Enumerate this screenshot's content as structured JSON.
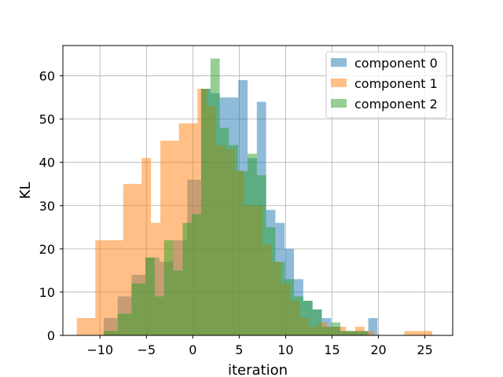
{
  "chart_data": {
    "type": "bar",
    "title": "",
    "xlabel": "iteration",
    "ylabel": "KL",
    "xlim": [
      -14,
      28
    ],
    "ylim": [
      0,
      67
    ],
    "xticks": [
      -10,
      -5,
      0,
      5,
      10,
      15,
      20,
      25
    ],
    "yticks": [
      0,
      10,
      20,
      30,
      40,
      50,
      60
    ],
    "xtick_labels": [
      "−10",
      "−5",
      "0",
      "5",
      "10",
      "15",
      "20",
      "25"
    ],
    "ytick_labels": [
      "0",
      "10",
      "20",
      "30",
      "40",
      "50",
      "60"
    ],
    "grid": true,
    "legend_position": "top-right",
    "histogram": true,
    "series": [
      {
        "name": "component 0",
        "color": "#1f77b4",
        "bins": [
          [
            -9.6,
            -8.1,
            4
          ],
          [
            -8.1,
            -6.6,
            9
          ],
          [
            -6.6,
            -5.1,
            14
          ],
          [
            -5.1,
            -3.6,
            18
          ],
          [
            -3.6,
            -2.1,
            17
          ],
          [
            -2.1,
            -0.6,
            22
          ],
          [
            -0.6,
            0.9,
            36
          ],
          [
            0.9,
            1.9,
            57
          ],
          [
            1.9,
            2.9,
            56
          ],
          [
            2.9,
            3.9,
            55
          ],
          [
            3.9,
            4.9,
            55
          ],
          [
            4.9,
            5.9,
            59
          ],
          [
            5.9,
            6.9,
            41
          ],
          [
            6.9,
            7.9,
            54
          ],
          [
            7.9,
            8.9,
            29
          ],
          [
            8.9,
            9.9,
            26
          ],
          [
            9.9,
            10.9,
            20
          ],
          [
            10.9,
            11.9,
            13
          ],
          [
            11.9,
            12.9,
            8
          ],
          [
            12.9,
            13.9,
            6
          ],
          [
            13.9,
            14.9,
            4
          ],
          [
            14.9,
            15.9,
            2
          ],
          [
            15.9,
            16.9,
            1
          ],
          [
            16.9,
            17.9,
            1
          ],
          [
            17.9,
            18.9,
            1
          ],
          [
            18.9,
            19.9,
            4
          ]
        ]
      },
      {
        "name": "component 1",
        "color": "#ff7f0e",
        "bins": [
          [
            -12.5,
            -10.5,
            4
          ],
          [
            -10.5,
            -8.5,
            22
          ],
          [
            -8.5,
            -7.5,
            22
          ],
          [
            -7.5,
            -6.5,
            35
          ],
          [
            -6.5,
            -5.5,
            35
          ],
          [
            -5.5,
            -4.5,
            41
          ],
          [
            -4.5,
            -3.5,
            26
          ],
          [
            -3.5,
            -2.5,
            45
          ],
          [
            -2.5,
            -1.5,
            45
          ],
          [
            -1.5,
            -0.5,
            49
          ],
          [
            -0.5,
            0.5,
            49
          ],
          [
            0.5,
            1.5,
            57
          ],
          [
            1.5,
            2.5,
            53
          ],
          [
            2.5,
            3.5,
            44
          ],
          [
            3.5,
            4.5,
            43
          ],
          [
            4.5,
            5.5,
            38
          ],
          [
            5.5,
            6.5,
            30
          ],
          [
            6.5,
            7.5,
            30
          ],
          [
            7.5,
            8.5,
            21
          ],
          [
            8.5,
            9.5,
            17
          ],
          [
            9.5,
            10.5,
            12
          ],
          [
            10.5,
            11.5,
            8
          ],
          [
            11.5,
            12.5,
            4
          ],
          [
            12.5,
            13.5,
            2
          ],
          [
            13.5,
            14.5,
            3
          ],
          [
            14.5,
            15.5,
            2
          ],
          [
            15.5,
            16.5,
            2
          ],
          [
            16.5,
            17.5,
            1
          ],
          [
            17.5,
            18.5,
            2
          ],
          [
            18.5,
            19.5,
            1
          ],
          [
            22.8,
            25.8,
            1
          ]
        ]
      },
      {
        "name": "component 2",
        "color": "#2ca02c",
        "bins": [
          [
            -9.6,
            -8.1,
            1
          ],
          [
            -8.1,
            -6.6,
            5
          ],
          [
            -6.6,
            -5.1,
            12
          ],
          [
            -5.1,
            -4.1,
            18
          ],
          [
            -4.1,
            -3.1,
            9
          ],
          [
            -3.1,
            -2.1,
            22
          ],
          [
            -2.1,
            -1.1,
            15
          ],
          [
            -1.1,
            -0.1,
            26
          ],
          [
            -0.1,
            0.9,
            28
          ],
          [
            0.9,
            1.9,
            57
          ],
          [
            1.9,
            2.9,
            64
          ],
          [
            2.9,
            3.9,
            48
          ],
          [
            3.9,
            4.9,
            44
          ],
          [
            4.9,
            5.9,
            38
          ],
          [
            5.9,
            6.9,
            42
          ],
          [
            6.9,
            7.9,
            37
          ],
          [
            7.9,
            8.9,
            25
          ],
          [
            8.9,
            9.9,
            17
          ],
          [
            9.9,
            10.9,
            13
          ],
          [
            10.9,
            11.9,
            9
          ],
          [
            11.9,
            12.9,
            8
          ],
          [
            12.9,
            13.9,
            6
          ],
          [
            13.9,
            14.9,
            2
          ],
          [
            14.9,
            15.9,
            3
          ],
          [
            15.9,
            16.9,
            1
          ],
          [
            16.9,
            17.9,
            1
          ],
          [
            17.9,
            18.9,
            1
          ]
        ]
      }
    ]
  }
}
